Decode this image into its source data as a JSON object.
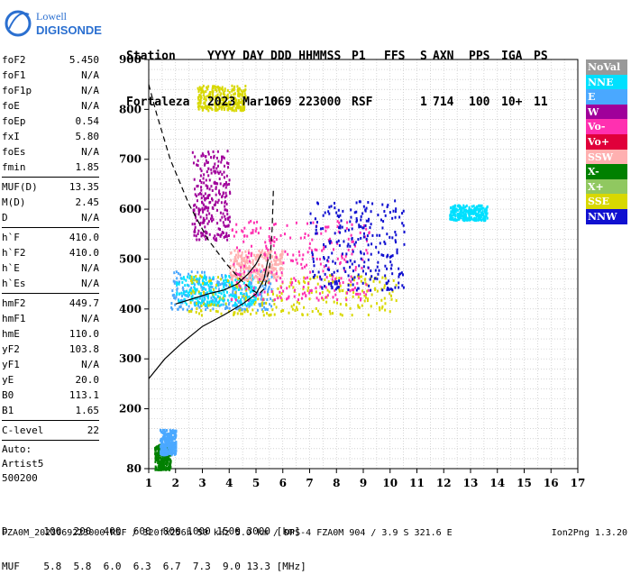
{
  "brand": {
    "top": "Lowell",
    "bottom": "DIGISONDE"
  },
  "header": {
    "labels": [
      "Station",
      "YYYY DAY",
      "DDD HHMMSS",
      "P1",
      "FFS",
      "S",
      "AXN",
      "PPS",
      "IGA",
      "PS"
    ],
    "values": [
      "Fortaleza",
      "2023 Mar10",
      "069 223000",
      "RSF",
      "",
      "1",
      "714",
      "100",
      "10+",
      "11"
    ]
  },
  "params": [
    {
      "k": "foF2",
      "v": "5.450"
    },
    {
      "k": "foF1",
      "v": "N/A"
    },
    {
      "k": "foF1p",
      "v": "N/A"
    },
    {
      "k": "foE",
      "v": "N/A"
    },
    {
      "k": "foEp",
      "v": "0.54"
    },
    {
      "k": "fxI",
      "v": "5.80"
    },
    {
      "k": "foEs",
      "v": "N/A"
    },
    {
      "k": "fmin",
      "v": "1.85"
    }
  ],
  "params2": [
    {
      "k": "MUF(D)",
      "v": "13.35"
    },
    {
      "k": "M(D)",
      "v": "2.45"
    },
    {
      "k": "D",
      "v": "N/A"
    }
  ],
  "params3": [
    {
      "k": "h`F",
      "v": "410.0"
    },
    {
      "k": "h`F2",
      "v": "410.0"
    },
    {
      "k": "h`E",
      "v": "N/A"
    },
    {
      "k": "h`Es",
      "v": "N/A"
    }
  ],
  "params4": [
    {
      "k": "hmF2",
      "v": "449.7"
    },
    {
      "k": "hmF1",
      "v": "N/A"
    },
    {
      "k": "hmE",
      "v": "110.0"
    },
    {
      "k": "yF2",
      "v": "103.8"
    },
    {
      "k": "yF1",
      "v": "N/A"
    },
    {
      "k": "yE",
      "v": "20.0"
    },
    {
      "k": "B0",
      "v": "113.1"
    },
    {
      "k": "B1",
      "v": "1.65"
    }
  ],
  "params5": [
    {
      "k": "C-level",
      "v": "22"
    }
  ],
  "autoscale": [
    "Auto:",
    "Artist5",
    "500200"
  ],
  "legend": [
    {
      "label": "NoVal",
      "color": "#999999"
    },
    {
      "label": "NNE",
      "color": "#00e0ff"
    },
    {
      "label": "E",
      "color": "#4aa8ff"
    },
    {
      "label": "W",
      "color": "#a0009a"
    },
    {
      "label": "Vo-",
      "color": "#ff30b0"
    },
    {
      "label": "Vo+",
      "color": "#e0003a"
    },
    {
      "label": "SSW",
      "color": "#ffb0b0"
    },
    {
      "label": "X-",
      "color": "#008000"
    },
    {
      "label": "X+",
      "color": "#90c860"
    },
    {
      "label": "SSE",
      "color": "#d8d800"
    },
    {
      "label": "NNW",
      "color": "#1010d0"
    }
  ],
  "footer": {
    "line1": "D      100  200  400  600  800 1000 1500 3000 [km]",
    "line2": "MUF    5.8  5.8  6.0  6.3  6.7  7.3  9.0 13.3 [MHz]",
    "line3": "FZA0M_2023069223000.RSF / 320fx256h 50 kHz 5.0 km / DPS-4 FZA0M 904 / 3.9 S 321.6 E",
    "version": "Ion2Png 1.3.20"
  },
  "chart_data": {
    "type": "scatter",
    "x_ticks": [
      1,
      2,
      3,
      4,
      5,
      6,
      7,
      8,
      9,
      10,
      11,
      12,
      13,
      14,
      15,
      16,
      17
    ],
    "y_ticks": [
      80,
      200,
      300,
      400,
      500,
      600,
      700,
      800,
      900
    ],
    "xlim": [
      1,
      17
    ],
    "ylim": [
      80,
      900
    ],
    "grid": true,
    "clusters": [
      {
        "color": "#4aa8ff",
        "x": [
          1.8,
          5.6
        ],
        "y": [
          400,
          480
        ]
      },
      {
        "color": "#00e0ff",
        "x": [
          2.0,
          5.0
        ],
        "y": [
          410,
          470
        ]
      },
      {
        "color": "#d8d800",
        "x": [
          2.4,
          10.2
        ],
        "y": [
          390,
          470
        ]
      },
      {
        "color": "#ffb0b0",
        "x": [
          4.0,
          6.0
        ],
        "y": [
          460,
          520
        ]
      },
      {
        "color": "#a0009a",
        "x": [
          2.6,
          4.0
        ],
        "y": [
          540,
          720
        ]
      },
      {
        "color": "#ff30b0",
        "x": [
          4.0,
          9.2
        ],
        "y": [
          420,
          580
        ]
      },
      {
        "color": "#1010d0",
        "x": [
          7.0,
          10.5
        ],
        "y": [
          440,
          620
        ]
      },
      {
        "color": "#00e0ff",
        "x": [
          12.2,
          13.6
        ],
        "y": [
          580,
          610
        ]
      },
      {
        "color": "#d8d800",
        "x": [
          2.8,
          4.6
        ],
        "y": [
          800,
          850
        ]
      },
      {
        "color": "#008000",
        "x": [
          1.2,
          1.8
        ],
        "y": [
          80,
          130
        ]
      },
      {
        "color": "#4aa8ff",
        "x": [
          1.4,
          2.0
        ],
        "y": [
          110,
          160
        ]
      }
    ],
    "profile_curve": [
      [
        1.0,
        850
      ],
      [
        1.3,
        790
      ],
      [
        1.8,
        700
      ],
      [
        2.5,
        610
      ],
      [
        3.2,
        540
      ],
      [
        3.9,
        490
      ],
      [
        4.4,
        460
      ],
      [
        4.8,
        440
      ],
      [
        5.1,
        430
      ],
      [
        5.3,
        440
      ],
      [
        5.5,
        480
      ],
      [
        5.6,
        560
      ],
      [
        5.65,
        640
      ]
    ],
    "lower_curve": [
      [
        1.0,
        260
      ],
      [
        1.6,
        300
      ],
      [
        2.2,
        330
      ],
      [
        3.0,
        365
      ],
      [
        3.8,
        388
      ],
      [
        4.5,
        410
      ],
      [
        5.0,
        430
      ],
      [
        5.3,
        460
      ],
      [
        5.45,
        500
      ]
    ],
    "trace_line": [
      [
        2.0,
        410
      ],
      [
        2.6,
        420
      ],
      [
        3.2,
        430
      ],
      [
        3.8,
        438
      ],
      [
        4.3,
        450
      ],
      [
        4.7,
        470
      ],
      [
        5.0,
        490
      ],
      [
        5.2,
        510
      ]
    ]
  }
}
